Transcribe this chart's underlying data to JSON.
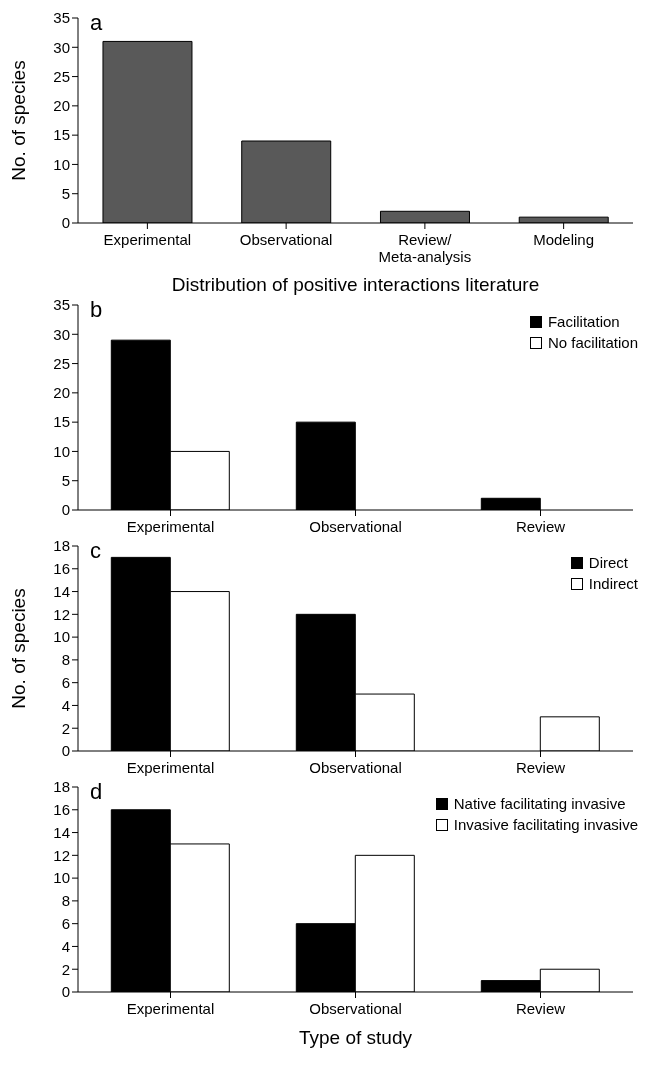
{
  "chart_data": [
    {
      "type": "bar",
      "title": "a",
      "categories": [
        "Experimental",
        "Observational",
        "Review/\nMeta-analysis",
        "Modeling"
      ],
      "values": [
        31,
        14,
        2,
        1
      ],
      "color": "#595959",
      "ylabel": "No. of species",
      "xlabel": "Distribution of positive interactions literature",
      "ylim": [
        0,
        35
      ],
      "yticks": [
        0,
        5,
        10,
        15,
        20,
        25,
        30,
        35
      ],
      "grid": false,
      "legend": false
    },
    {
      "type": "bar",
      "title": "b",
      "categories": [
        "Experimental",
        "Observational",
        "Review"
      ],
      "series": [
        {
          "name": "Facilitation",
          "color": "#000000",
          "values": [
            29,
            15,
            2
          ]
        },
        {
          "name": "No facilitation",
          "color": "#ffffff",
          "values": [
            10,
            0,
            0
          ]
        }
      ],
      "ylim": [
        0,
        35
      ],
      "yticks": [
        0,
        5,
        10,
        15,
        20,
        25,
        30,
        35
      ],
      "grid": false,
      "legend": "top right"
    },
    {
      "type": "bar",
      "title": "c",
      "categories": [
        "Experimental",
        "Observational",
        "Review"
      ],
      "series": [
        {
          "name": "Direct",
          "color": "#000000",
          "values": [
            17,
            12,
            0
          ]
        },
        {
          "name": "Indirect",
          "color": "#ffffff",
          "values": [
            14,
            5,
            3
          ]
        }
      ],
      "ylabel": "No. of species",
      "ylim": [
        0,
        18
      ],
      "yticks": [
        0,
        2,
        4,
        6,
        8,
        10,
        12,
        14,
        16,
        18
      ],
      "grid": false,
      "legend": "top right"
    },
    {
      "type": "bar",
      "title": "d",
      "categories": [
        "Experimental",
        "Observational",
        "Review"
      ],
      "series": [
        {
          "name": "Native facilitating invasive",
          "color": "#000000",
          "values": [
            16,
            6,
            1
          ]
        },
        {
          "name": "Invasive facilitating invasive",
          "color": "#ffffff",
          "values": [
            13,
            12,
            2
          ]
        }
      ],
      "xlabel": "Type of study",
      "ylim": [
        0,
        18
      ],
      "yticks": [
        0,
        2,
        4,
        6,
        8,
        10,
        12,
        14,
        16,
        18
      ],
      "grid": false,
      "legend": "top right"
    }
  ]
}
